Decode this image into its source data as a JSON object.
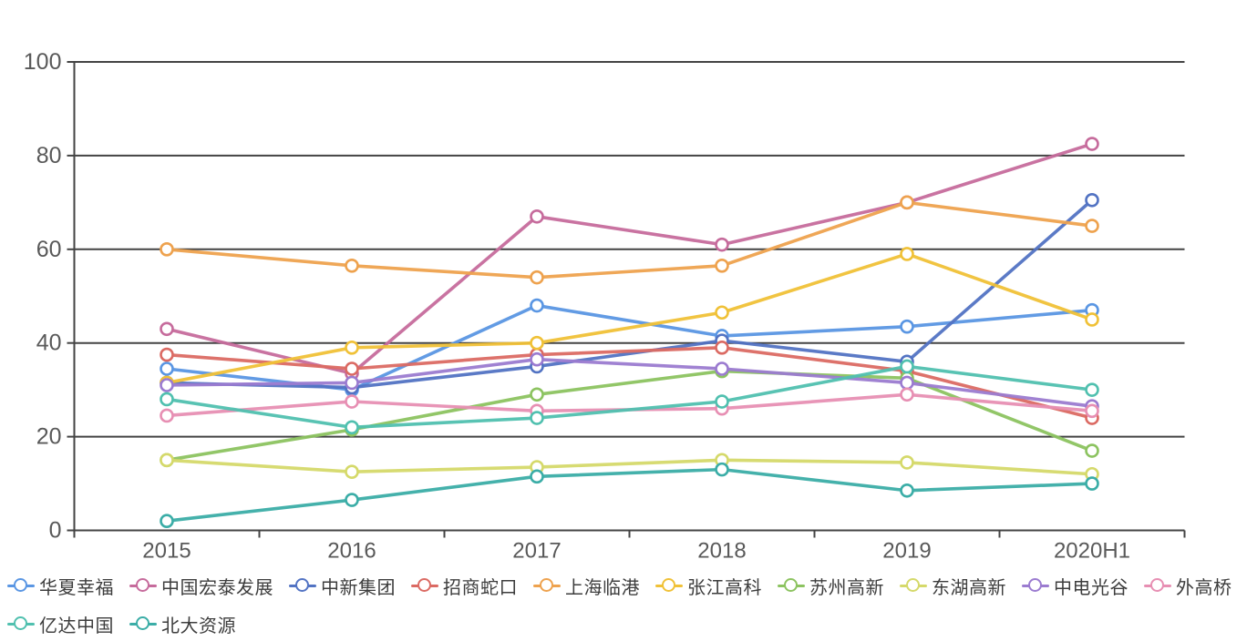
{
  "chart_data": {
    "type": "line",
    "title": "",
    "xlabel": "",
    "ylabel": "",
    "categories": [
      "2015",
      "2016",
      "2017",
      "2018",
      "2019",
      "2020H1"
    ],
    "yticks": [
      0,
      20,
      40,
      60,
      80,
      100
    ],
    "ylim": [
      0,
      100
    ],
    "grid": true,
    "grid_color": "#434343",
    "axis_label_color": "#595959",
    "legend_position": "bottom-left",
    "marker_style": "hollow-circle",
    "series": [
      {
        "name": "华夏幸福",
        "color": "#5A96E3",
        "values": [
          34.5,
          30,
          48,
          41.5,
          43.5,
          47
        ]
      },
      {
        "name": "中国宏泰发展",
        "color": "#C66B9C",
        "values": [
          43,
          33.5,
          67,
          61,
          70,
          82.5
        ]
      },
      {
        "name": "中新集团",
        "color": "#5273C3",
        "values": [
          31.5,
          30.5,
          35,
          40.5,
          36,
          70.5
        ]
      },
      {
        "name": "招商蛇口",
        "color": "#DB6A63",
        "values": [
          37.5,
          34.5,
          37.5,
          39,
          34,
          24
        ]
      },
      {
        "name": "上海临港",
        "color": "#EEA24E",
        "values": [
          60,
          56.5,
          54,
          56.5,
          70,
          65
        ]
      },
      {
        "name": "张江高科",
        "color": "#F0C137",
        "values": [
          31.5,
          39,
          40,
          46.5,
          59,
          45
        ]
      },
      {
        "name": "苏州高新",
        "color": "#8CC360",
        "values": [
          15,
          21.5,
          29,
          34,
          32.5,
          17
        ]
      },
      {
        "name": "东湖高新",
        "color": "#D5D96A",
        "values": [
          15,
          12.5,
          13.5,
          15,
          14.5,
          12
        ]
      },
      {
        "name": "中电光谷",
        "color": "#9B7BD0",
        "values": [
          31,
          31.5,
          36.5,
          34.5,
          31.5,
          26.5
        ]
      },
      {
        "name": "外高桥",
        "color": "#E78FB3",
        "values": [
          24.5,
          27.5,
          25.5,
          26,
          29,
          25.5
        ]
      },
      {
        "name": "亿达中国",
        "color": "#50C0AF",
        "values": [
          28,
          22,
          24,
          27.5,
          35,
          30
        ]
      },
      {
        "name": "北大资源",
        "color": "#3BADA7",
        "values": [
          2,
          6.5,
          11.5,
          13,
          8.5,
          10
        ]
      }
    ]
  }
}
